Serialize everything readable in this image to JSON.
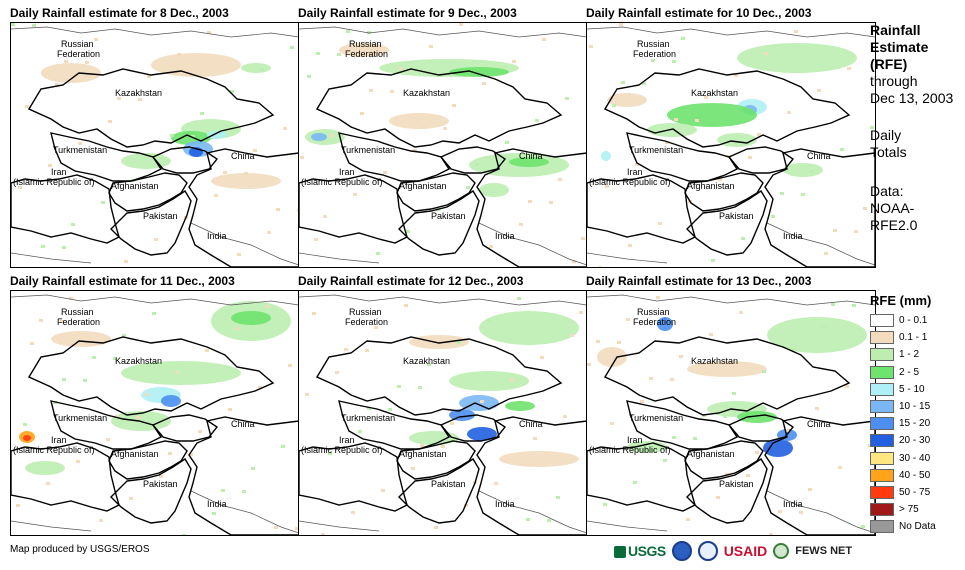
{
  "panels": [
    {
      "title": "Daily Rainfall estimate for 8 Dec., 2003"
    },
    {
      "title": "Daily Rainfall estimate for 9 Dec., 2003"
    },
    {
      "title": "Daily Rainfall estimate for 10 Dec., 2003"
    },
    {
      "title": "Daily Rainfall estimate for 11 Dec., 2003"
    },
    {
      "title": "Daily Rainfall estimate for 12 Dec., 2003"
    },
    {
      "title": "Daily Rainfall estimate for 13 Dec., 2003"
    }
  ],
  "countries": {
    "russia_1": "Russian",
    "russia_2": "Federation",
    "kazakhstan": "Kazakhstan",
    "turkmenistan": "Turkmenistan",
    "iran_1": "Iran",
    "iran_2": "(Islamic Republic of)",
    "afghanistan": "Afghanistan",
    "pakistan": "Pakistan",
    "china": "China",
    "india": "India"
  },
  "side": {
    "title_1": "Rainfall",
    "title_2": "Estimate",
    "title_3": "(RFE)",
    "through": "through",
    "date": "Dec 13, 2003",
    "daily": "Daily",
    "totals": "Totals",
    "data_label": "Data:",
    "data_src_1": "NOAA-",
    "data_src_2": "RFE2.0"
  },
  "legend": {
    "title": "RFE (mm)",
    "items": [
      {
        "label": "0 - 0.1",
        "color": "#ffffff"
      },
      {
        "label": "0.1 - 1",
        "color": "#f2dcbd"
      },
      {
        "label": "1 - 2",
        "color": "#bdeeb0"
      },
      {
        "label": "2 - 5",
        "color": "#6ee36e"
      },
      {
        "label": "5 - 10",
        "color": "#aef0f5"
      },
      {
        "label": "10 - 15",
        "color": "#7ab8f5"
      },
      {
        "label": "15 - 20",
        "color": "#4d8ff0"
      },
      {
        "label": "20 - 30",
        "color": "#2160e0"
      },
      {
        "label": "30 - 40",
        "color": "#ffe680"
      },
      {
        "label": "40 - 50",
        "color": "#ffa31a"
      },
      {
        "label": "50 - 75",
        "color": "#ff3b0f"
      },
      {
        "label": "> 75",
        "color": "#a11a1a"
      },
      {
        "label": "No Data",
        "color": "#999999"
      }
    ]
  },
  "footer": {
    "credit": "Map produced by USGS/EROS",
    "logo_usgs": "USGS",
    "logo_usaid": "USAID",
    "logo_fews": "FEWS NET"
  }
}
